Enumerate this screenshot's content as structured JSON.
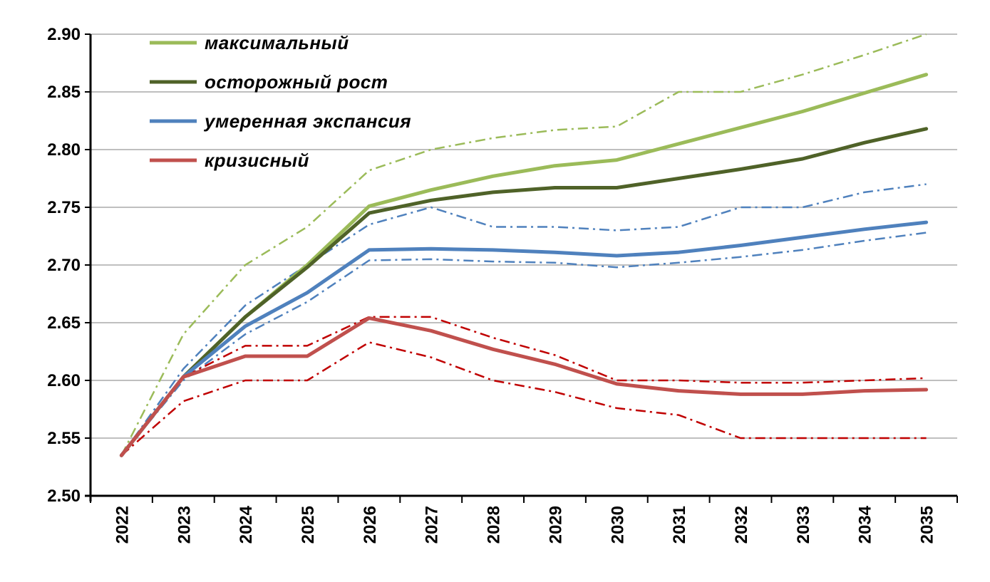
{
  "chart_data": {
    "type": "line",
    "title": "",
    "xlabel": "",
    "ylabel": "",
    "ylim": [
      2.5,
      2.9
    ],
    "y_ticks": [
      "2.50",
      "2.55",
      "2.60",
      "2.65",
      "2.70",
      "2.75",
      "2.80",
      "2.85",
      "2.90"
    ],
    "categories": [
      "2022",
      "2023",
      "2024",
      "2025",
      "2026",
      "2027",
      "2028",
      "2029",
      "2030",
      "2031",
      "2032",
      "2033",
      "2034",
      "2035"
    ],
    "grid": true,
    "legend_position": "top-left",
    "series": [
      {
        "name": "максимальный",
        "color": "#9BBB59",
        "style": "solid",
        "values": [
          2.535,
          2.603,
          2.655,
          2.7,
          2.751,
          2.765,
          2.777,
          2.786,
          2.791,
          2.805,
          2.819,
          2.833,
          2.849,
          2.865
        ]
      },
      {
        "name": "осторожный рост",
        "color": "#4F6228",
        "style": "solid",
        "values": [
          2.535,
          2.603,
          2.655,
          2.698,
          2.745,
          2.756,
          2.763,
          2.767,
          2.767,
          2.775,
          2.783,
          2.792,
          2.806,
          2.818
        ]
      },
      {
        "name": "умеренная экспансия",
        "color": "#4F81BD",
        "style": "solid",
        "values": [
          2.535,
          2.603,
          2.647,
          2.676,
          2.713,
          2.714,
          2.713,
          2.711,
          2.708,
          2.711,
          2.717,
          2.724,
          2.731,
          2.737
        ]
      },
      {
        "name": "кризисный",
        "color": "#C0504D",
        "style": "solid",
        "values": [
          2.535,
          2.603,
          2.621,
          2.621,
          2.654,
          2.643,
          2.627,
          2.614,
          2.597,
          2.591,
          2.588,
          2.588,
          2.591,
          2.592
        ]
      },
      {
        "color": "#9BBB59",
        "style": "dashdot",
        "values": [
          2.535,
          2.64,
          2.7,
          2.733,
          2.782,
          2.8,
          2.81,
          2.817,
          2.82,
          2.85,
          2.85,
          2.865,
          2.882,
          2.9
        ]
      },
      {
        "color": "#4F81BD",
        "style": "dashdot",
        "values": [
          2.535,
          2.61,
          2.665,
          2.7,
          2.735,
          2.75,
          2.733,
          2.733,
          2.73,
          2.733,
          2.75,
          2.75,
          2.763,
          2.77
        ]
      },
      {
        "color": "#4F81BD",
        "style": "dashdot",
        "values": [
          2.535,
          2.6,
          2.64,
          2.668,
          2.704,
          2.705,
          2.703,
          2.702,
          2.698,
          2.702,
          2.707,
          2.713,
          2.721,
          2.728
        ]
      },
      {
        "color": "#C00000",
        "style": "dashdot",
        "values": [
          2.535,
          2.603,
          2.63,
          2.63,
          2.655,
          2.655,
          2.637,
          2.622,
          2.6,
          2.6,
          2.598,
          2.598,
          2.6,
          2.602
        ]
      },
      {
        "color": "#C00000",
        "style": "dashdot",
        "values": [
          2.535,
          2.582,
          2.6,
          2.6,
          2.633,
          2.62,
          2.6,
          2.59,
          2.576,
          2.57,
          2.55,
          2.55,
          2.55,
          2.55
        ]
      }
    ]
  }
}
